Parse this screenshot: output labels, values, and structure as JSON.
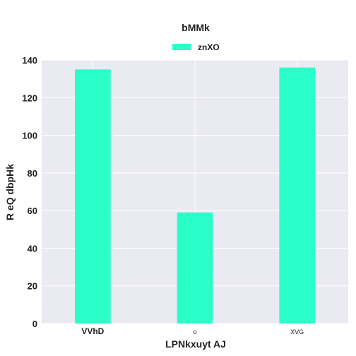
{
  "chart_data": {
    "type": "bar",
    "title": "bMMk",
    "xlabel": "LPNkxuyt AJ",
    "ylabel": "R eQ dbpHk",
    "categories": [
      "VVhD",
      "o",
      "XVG"
    ],
    "category_styles": [
      "bold",
      "small",
      "small"
    ],
    "series": [
      {
        "name": "znXO",
        "color": "#2affca",
        "values": [
          135,
          59,
          136
        ]
      }
    ],
    "ylim": [
      0,
      140
    ],
    "yticks": [
      0,
      20,
      40,
      60,
      80,
      100,
      120,
      140
    ],
    "grid": true,
    "legend_position": "top-center",
    "plot_background": "#eaeaf2"
  }
}
